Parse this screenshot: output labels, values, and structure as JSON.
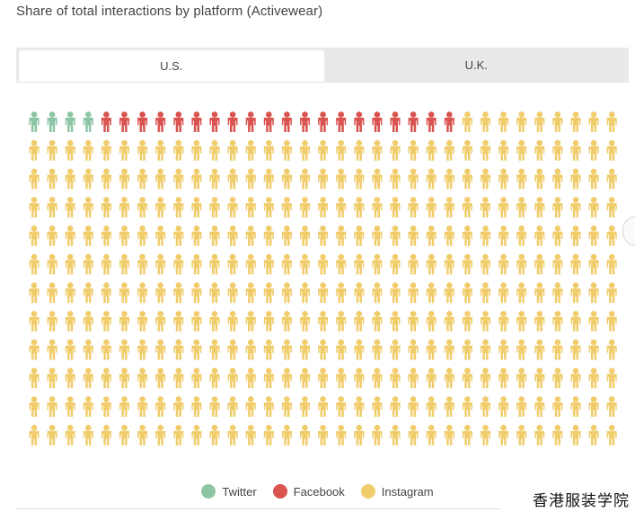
{
  "title": "Share of total interactions by platform (Activewear)",
  "tabs": [
    {
      "label": "U.S.",
      "active": true
    },
    {
      "label": "U.K.",
      "active": false
    }
  ],
  "chart_data": {
    "type": "waffle",
    "title": "Share of total interactions by platform (Activewear)",
    "unit": "person icon",
    "rows": 12,
    "columns": 33,
    "total_icons": 396,
    "series": [
      {
        "name": "Twitter",
        "count": 4,
        "color": "#8cc5a3"
      },
      {
        "name": "Facebook",
        "count": 20,
        "color": "#d9534f"
      },
      {
        "name": "Instagram",
        "count": 372,
        "color": "#f0cc6b"
      }
    ],
    "legend_position": "bottom-center"
  },
  "legend": [
    {
      "label": "Twitter",
      "color": "#8cc5a3"
    },
    {
      "label": "Facebook",
      "color": "#d9534f"
    },
    {
      "label": "Instagram",
      "color": "#f0cc6b"
    }
  ],
  "watermark": "香港服装学院"
}
